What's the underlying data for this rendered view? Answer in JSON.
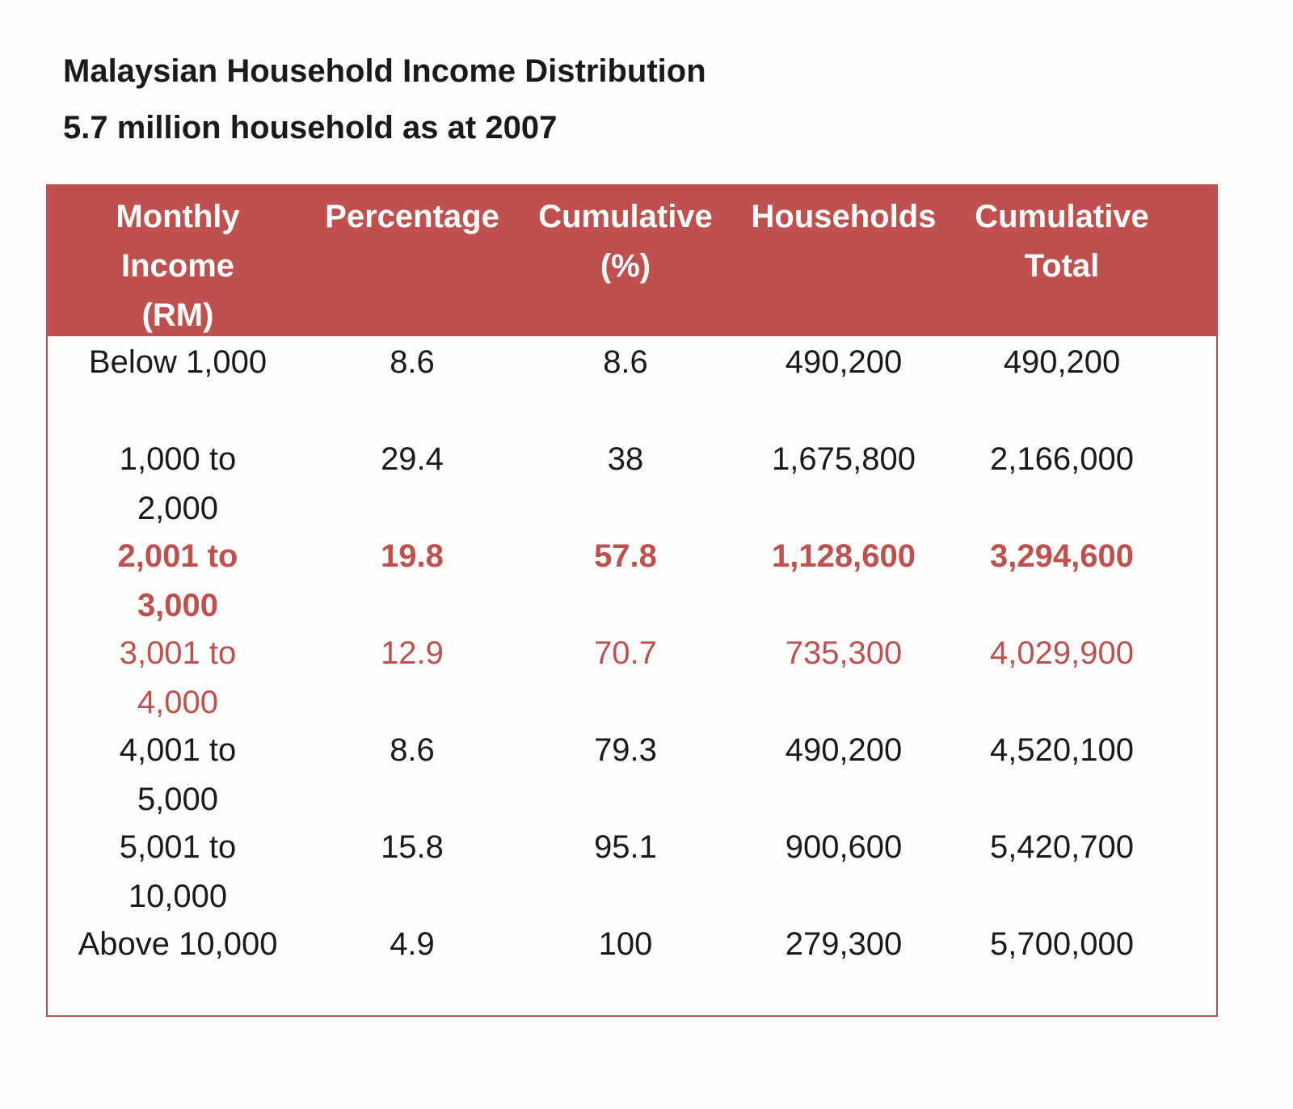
{
  "title": "Malaysian Household Income Distribution",
  "subtitle": "5.7 million household as at 2007",
  "colors": {
    "header_bg": "#c0504d",
    "highlight_text": "#c0504d",
    "body_text": "#1a1a1a"
  },
  "table": {
    "headers": [
      "Monthly\nIncome\n(RM)",
      "Percentage",
      "Cumulative\n(%)",
      "Households",
      "Cumulative\nTotal"
    ],
    "rows": [
      {
        "income": "Below 1,000",
        "percentage": "8.6",
        "cumulative_pct": "8.6",
        "households": "490,200",
        "cumulative_total": "490,200",
        "style": "normal"
      },
      {
        "income": "1,000 to\n2,000",
        "percentage": "29.4",
        "cumulative_pct": "38",
        "households": "1,675,800",
        "cumulative_total": "2,166,000",
        "style": "normal"
      },
      {
        "income": "2,001 to\n3,000",
        "percentage": "19.8",
        "cumulative_pct": "57.8",
        "households": "1,128,600",
        "cumulative_total": "3,294,600",
        "style": "highlight-bold"
      },
      {
        "income": "3,001 to\n4,000",
        "percentage": "12.9",
        "cumulative_pct": "70.7",
        "households": "735,300",
        "cumulative_total": "4,029,900",
        "style": "highlight"
      },
      {
        "income": "4,001 to\n5,000",
        "percentage": "8.6",
        "cumulative_pct": "79.3",
        "households": "490,200",
        "cumulative_total": "4,520,100",
        "style": "normal"
      },
      {
        "income": "5,001 to\n10,000",
        "percentage": "15.8",
        "cumulative_pct": "95.1",
        "households": "900,600",
        "cumulative_total": "5,420,700",
        "style": "normal"
      },
      {
        "income": "Above 10,000",
        "percentage": "4.9",
        "cumulative_pct": "100",
        "households": "279,300",
        "cumulative_total": "5,700,000",
        "style": "normal"
      }
    ]
  }
}
